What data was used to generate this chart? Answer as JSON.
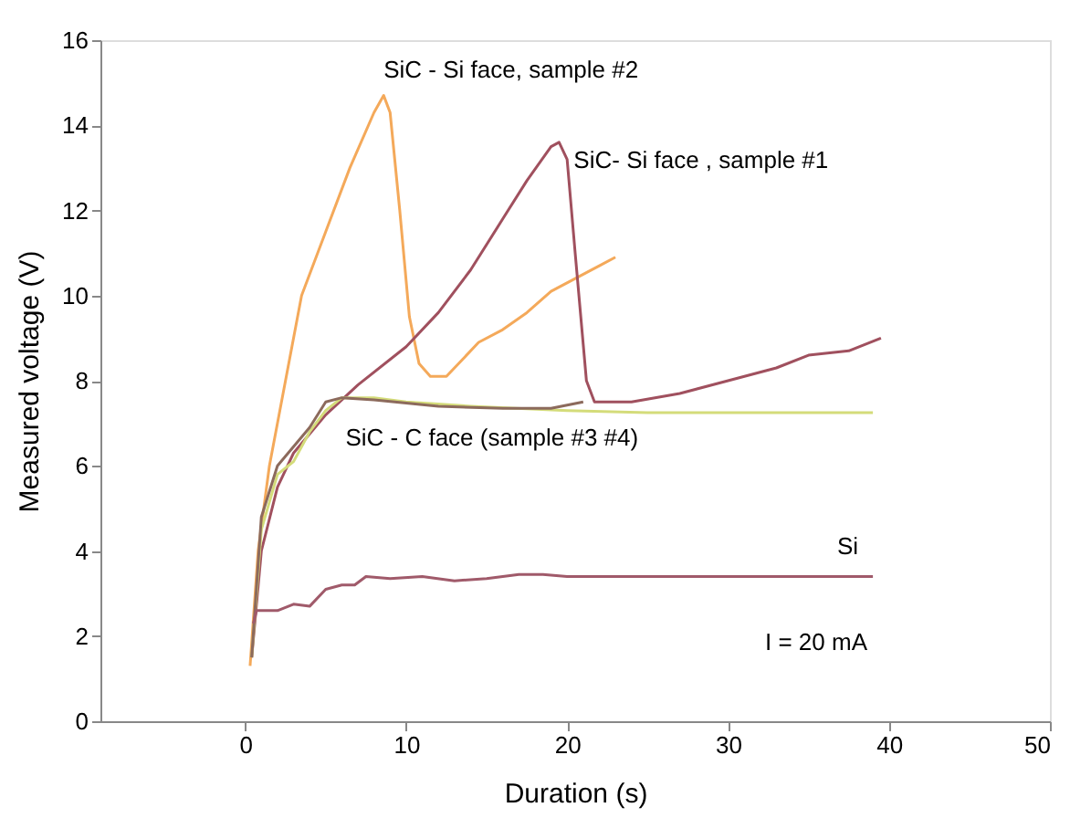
{
  "chart_data": {
    "type": "line",
    "xlabel": "Duration (s)",
    "ylabel": "Measured voltage (V)",
    "xlim": [
      -9,
      50
    ],
    "xticks": [
      0,
      10,
      20,
      30,
      40,
      50
    ],
    "ylim": [
      0,
      16
    ],
    "yticks": [
      0,
      2,
      4,
      6,
      8,
      10,
      12,
      14,
      16
    ],
    "grid": false,
    "marker": "none",
    "line_style": "solid",
    "series": [
      {
        "name": "SiC - Si face, sample #2",
        "color": "#f4a95a",
        "x": [
          0.3,
          0.8,
          1.5,
          2.5,
          3.5,
          5,
          6.5,
          8,
          8.6,
          9,
          9.6,
          10.2,
          10.8,
          11.5,
          12.5,
          13.5,
          14.5,
          16,
          17.5,
          19,
          20.5,
          22,
          23
        ],
        "values": [
          1.3,
          4,
          6,
          8,
          10,
          11.5,
          13,
          14.3,
          14.7,
          14.3,
          12,
          9.5,
          8.4,
          8.1,
          8.1,
          8.5,
          8.9,
          9.2,
          9.6,
          10.1,
          10.4,
          10.7,
          10.9
        ]
      },
      {
        "name": "SiC- Si face , sample #1",
        "color": "#a0505e",
        "x": [
          0.4,
          1,
          2,
          3,
          5,
          7,
          10,
          12,
          14,
          16,
          17.5,
          19,
          19.5,
          20,
          20.5,
          21.2,
          21.7,
          24,
          27,
          30,
          33,
          35,
          37.5,
          39.5
        ],
        "values": [
          1.5,
          4,
          5.5,
          6.3,
          7.2,
          7.9,
          8.8,
          9.6,
          10.6,
          11.8,
          12.7,
          13.5,
          13.6,
          13.2,
          11,
          8,
          7.5,
          7.5,
          7.7,
          8,
          8.3,
          8.6,
          8.7,
          9
        ]
      },
      {
        "name": "SiC - C face (sample #3 #4)",
        "color": "#d4dc7a",
        "x": [
          0.4,
          1,
          2,
          3,
          4,
          5,
          6,
          8,
          10,
          14,
          20,
          25,
          39
        ],
        "values": [
          1.5,
          4.5,
          5.8,
          6.1,
          6.8,
          7.3,
          7.6,
          7.6,
          7.5,
          7.4,
          7.3,
          7.25,
          7.25
        ]
      },
      {
        "color": "#8c6a5c",
        "x": [
          0.4,
          1,
          2,
          4,
          5,
          6,
          8,
          12,
          16,
          19,
          21
        ],
        "values": [
          1.5,
          4.8,
          6,
          6.9,
          7.5,
          7.6,
          7.55,
          7.4,
          7.35,
          7.35,
          7.5
        ]
      },
      {
        "name": "Si",
        "color": "#a05a6a",
        "x": [
          0.5,
          0.7,
          2,
          3,
          4,
          5,
          6,
          6.8,
          7.5,
          9,
          11,
          13,
          15,
          17,
          18.5,
          20,
          39
        ],
        "values": [
          2.3,
          2.6,
          2.6,
          2.75,
          2.7,
          3.1,
          3.2,
          3.2,
          3.4,
          3.35,
          3.4,
          3.3,
          3.35,
          3.45,
          3.45,
          3.4,
          3.4
        ]
      }
    ],
    "annotations": [
      "I = 20 mA"
    ]
  }
}
